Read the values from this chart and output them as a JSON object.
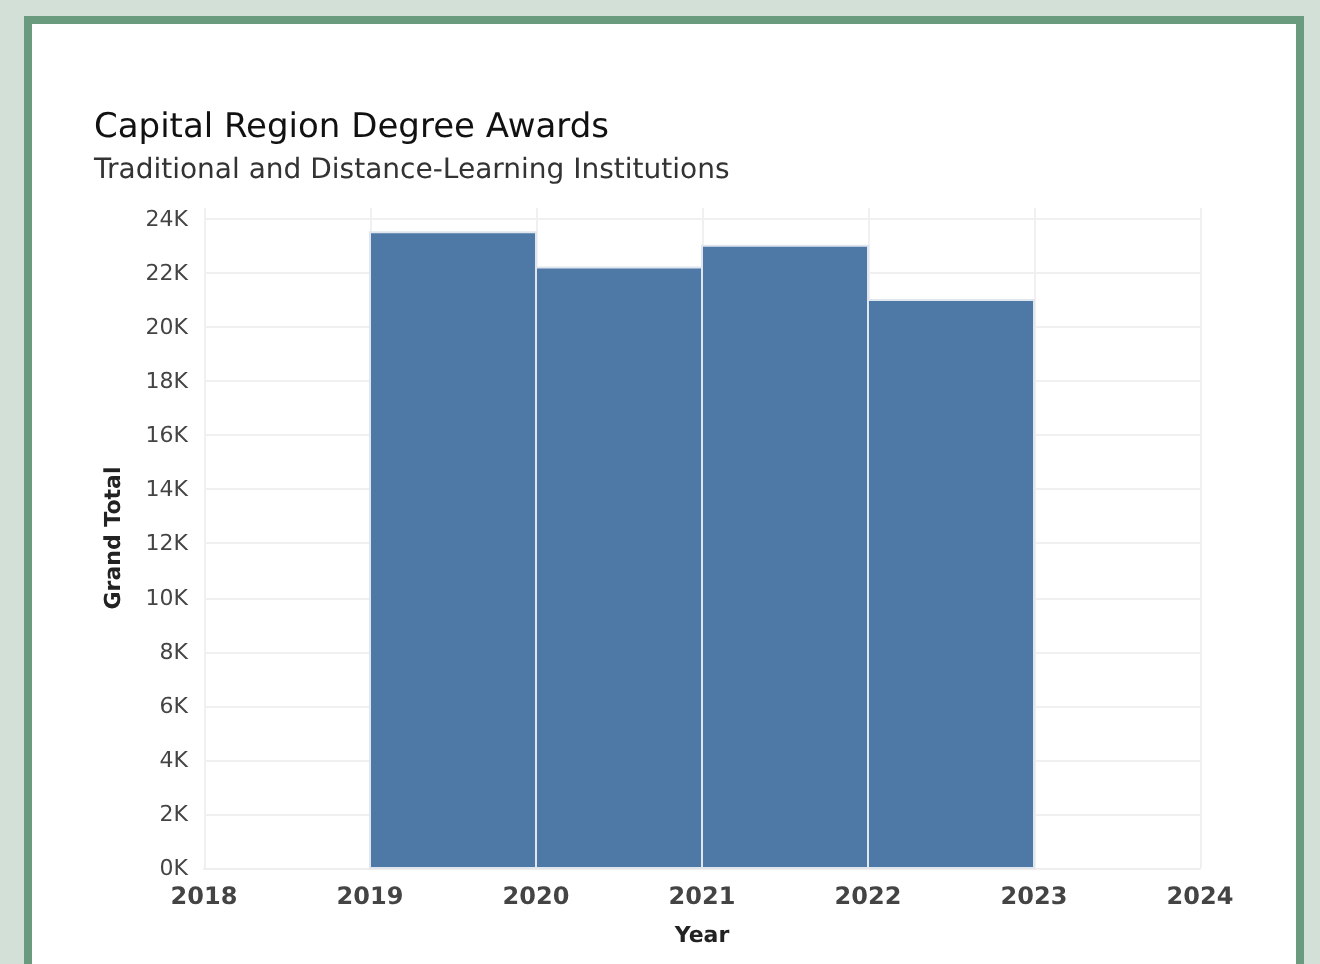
{
  "chart_data": {
    "type": "histogram",
    "title": "Capital Region Degree Awards",
    "subtitle": "Traditional and Distance-Learning Institutions",
    "xlabel": "Year",
    "ylabel": "Grand Total",
    "bins": [
      2019,
      2020,
      2021,
      2022,
      2023
    ],
    "values": [
      23500,
      22200,
      23000,
      21000
    ],
    "color": "#4e79a7",
    "xlim": [
      2018,
      2024
    ],
    "xticks": [
      2018,
      2019,
      2020,
      2021,
      2022,
      2023,
      2024
    ],
    "ylim": [
      0,
      24400
    ],
    "yticks": [
      {
        "value": 0,
        "label": "0K"
      },
      {
        "value": 2000,
        "label": "2K"
      },
      {
        "value": 4000,
        "label": "4K"
      },
      {
        "value": 6000,
        "label": "6K"
      },
      {
        "value": 8000,
        "label": "8K"
      },
      {
        "value": 10000,
        "label": "10K"
      },
      {
        "value": 12000,
        "label": "12K"
      },
      {
        "value": 14000,
        "label": "14K"
      },
      {
        "value": 16000,
        "label": "16K"
      },
      {
        "value": 18000,
        "label": "18K"
      },
      {
        "value": 20000,
        "label": "20K"
      },
      {
        "value": 22000,
        "label": "22K"
      },
      {
        "value": 24000,
        "label": "24K"
      }
    ],
    "grid": true
  }
}
